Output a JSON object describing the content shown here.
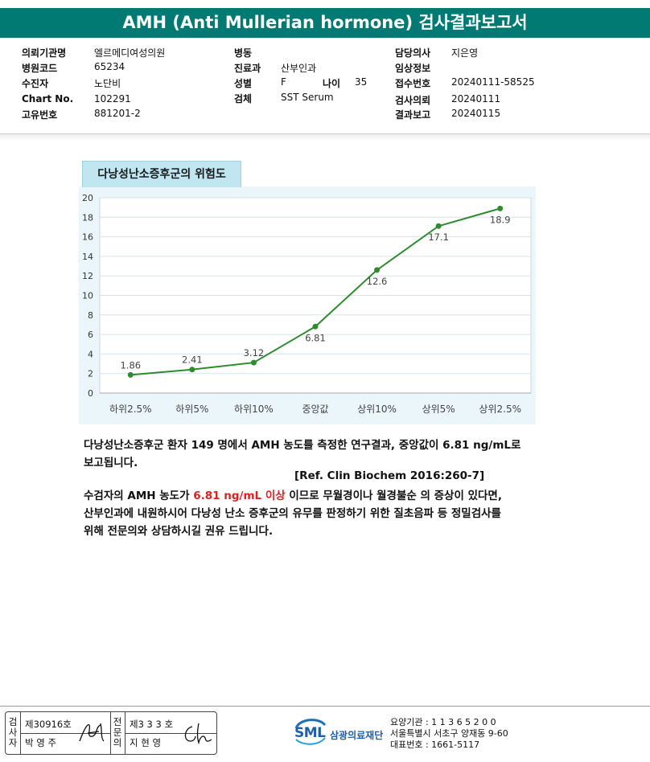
{
  "title": "AMH (Anti Mullerian hormone) 검사결과보고서",
  "patient_info": {
    "col1": [
      {
        "label": "의뢰기관명",
        "value": "엘르메디여성의원"
      },
      {
        "label": "병원코드",
        "value": "65234"
      },
      {
        "label": "수진자",
        "value": "노단비"
      },
      {
        "label": "Chart No.",
        "value": "102291"
      },
      {
        "label": "고유번호",
        "value": "881201-2"
      }
    ],
    "col2": [
      {
        "label": "병동",
        "value": ""
      },
      {
        "label": "진료과",
        "value": "산부인과"
      },
      {
        "label": "성별",
        "value": "F"
      },
      {
        "label": "검체",
        "value": "SST Serum"
      }
    ],
    "age": {
      "label": "나이",
      "value": "35"
    },
    "col3": [
      {
        "label": "담당의사",
        "value": "지은영"
      },
      {
        "label": "임상정보",
        "value": ""
      },
      {
        "label": "접수번호",
        "value": "20240111-58525"
      },
      {
        "label": "검사의뢰",
        "value": "20240111"
      },
      {
        "label": "결과보고",
        "value": "20240115"
      }
    ]
  },
  "chart_title": "다낭성난소증후군의 위험도",
  "chart_data": {
    "type": "line",
    "categories": [
      "하위2.5%",
      "하위5%",
      "하위10%",
      "중앙값",
      "상위10%",
      "상위5%",
      "상위2.5%"
    ],
    "series": [
      {
        "values": [
          1.86,
          2.41,
          3.12,
          6.81,
          12.6,
          17.1,
          18.9
        ]
      }
    ],
    "data_labels": [
      "1.86",
      "2.41",
      "3.12",
      "6.81",
      "12.6",
      "17.1",
      "18.9"
    ],
    "ylim": [
      0,
      20
    ],
    "yticks": [
      0,
      2,
      4,
      6,
      8,
      10,
      12,
      14,
      16,
      18,
      20
    ],
    "line_color": "#2e8b2e",
    "grid": "horizontal"
  },
  "text": {
    "p1_line1": "다낭성난소증후군 환자 149 명에서 AMH 농도를 측정한 연구결과, 중앙값이 6.81 ng/mL로",
    "p1_line2": "보고됩니다.",
    "ref": "[Ref. Clin Biochem 2016:260-7]",
    "p2_pre": "수검자의 AMH 농도가 ",
    "p2_highlight": "6.81 ng/mL 이상",
    "p2_post": " 이므로 무월경이나 월경불순 의 증상이 있다면,",
    "p2_line2": "산부인과에 내원하시어 다낭성 난소 증후군의 유무를 판정하기 위한 질초음파 등 정밀검사를",
    "p2_line3": "위해 전문의와 상담하시길 권유 드립니다."
  },
  "footer": {
    "left_vertical": [
      "검",
      "사",
      "자"
    ],
    "left_no": "제30916호",
    "left_name": "박 영 주",
    "right_vertical": [
      "전",
      "문",
      "의"
    ],
    "right_no": "제3 3 3 호",
    "right_name": "지 현 영",
    "logo_text": "SML",
    "org_name": "삼광의료재단",
    "lab_code": "요양기관 : 1 1 3 6 5 2 0 0",
    "address": "서울특별시 서초구 양재동 9-60",
    "phone": "대표번호 : 1661-5117"
  },
  "colors": {
    "header": "#007a72",
    "chart_bg": "#ebf6fb",
    "highlight": "#e02020"
  }
}
